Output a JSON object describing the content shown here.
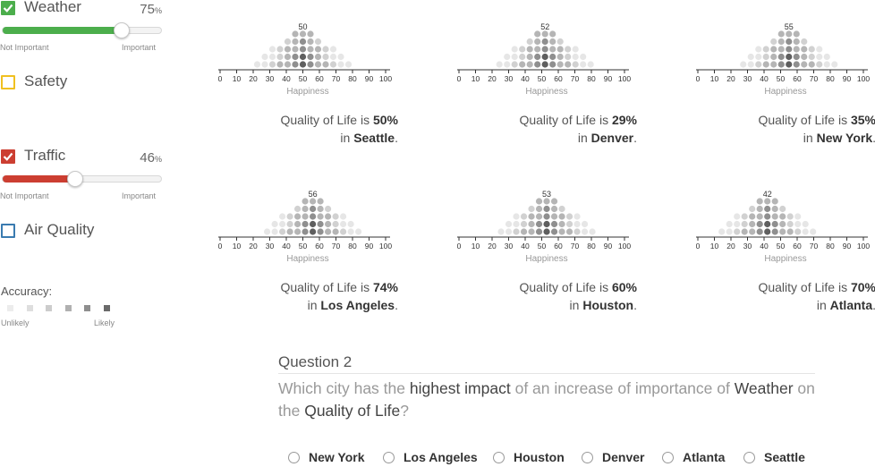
{
  "factors": [
    {
      "key": "weather",
      "label": "Weather",
      "checked": true,
      "box_color": "#4cae4c",
      "value_text": "75",
      "value_unit": "%",
      "slider_value": 0.75,
      "slider_color": "#4cae4c",
      "min_label": "Not Important",
      "max_label": "Important"
    },
    {
      "key": "safety",
      "label": "Safety",
      "checked": false,
      "box_color": "#f0c020"
    },
    {
      "key": "traffic",
      "label": "Traffic",
      "checked": true,
      "box_color": "#cc3e31",
      "value_text": "46",
      "value_unit": "%",
      "slider_value": 0.46,
      "slider_color": "#cc3e31",
      "min_label": "Not Important",
      "max_label": "Important"
    },
    {
      "key": "air_quality",
      "label": "Air Quality",
      "checked": false,
      "box_color": "#3a7bb0"
    }
  ],
  "accuracy": {
    "title": "Accuracy:",
    "low_label": "Unlikely",
    "high_label": "Likely",
    "swatches": [
      "#ececec",
      "#dedede",
      "#cccccc",
      "#b0b0b0",
      "#8e8e8e",
      "#6a6a6a"
    ]
  },
  "axis": {
    "ticks": [
      "0",
      "10",
      "20",
      "30",
      "40",
      "50",
      "60",
      "70",
      "80",
      "90",
      "100"
    ],
    "label": "Happiness"
  },
  "quality_prefix": "Quality of Life is ",
  "quality_mid": "in ",
  "quality_suffix": ".",
  "cities": [
    {
      "name": "Seattle",
      "peak": "50",
      "peak_value": 50,
      "quality": "50%"
    },
    {
      "name": "Denver",
      "peak": "52",
      "peak_value": 52,
      "quality": "29%"
    },
    {
      "name": "New York",
      "peak": "55",
      "peak_value": 55,
      "quality": "35%"
    },
    {
      "name": "Los Angeles",
      "peak": "56",
      "peak_value": 56,
      "quality": "74%"
    },
    {
      "name": "Houston",
      "peak": "53",
      "peak_value": 53,
      "quality": "60%"
    },
    {
      "name": "Atlanta",
      "peak": "42",
      "peak_value": 42,
      "quality": "70%"
    }
  ],
  "question": {
    "title": "Question 2",
    "text_parts": [
      {
        "t": "Which city has the ",
        "em": false
      },
      {
        "t": "highest impact",
        "em": true
      },
      {
        "t": " of an increase of importance of ",
        "em": false
      },
      {
        "t": "Weather",
        "em": true
      },
      {
        "t": " on the ",
        "em": false
      },
      {
        "t": "Quality of Life",
        "em": true
      },
      {
        "t": "?",
        "em": false
      }
    ],
    "options": [
      "New York",
      "Los Angeles",
      "Houston",
      "Denver",
      "Atlanta",
      "Seattle"
    ]
  }
}
